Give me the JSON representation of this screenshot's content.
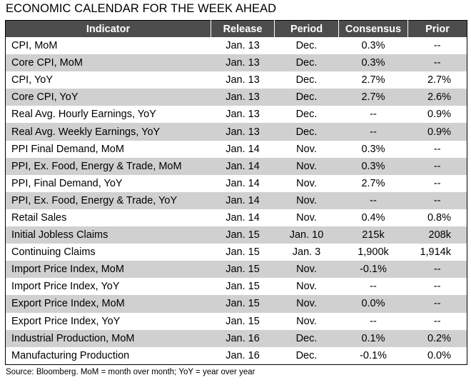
{
  "title": "ECONOMIC CALENDAR FOR THE WEEK AHEAD",
  "columns": [
    "Indicator",
    "Release",
    "Period",
    "Consensus",
    "Prior"
  ],
  "rows": [
    {
      "indicator": "CPI, MoM",
      "release": "Jan. 13",
      "period": "Dec.",
      "consensus": "0.3%",
      "prior": "--"
    },
    {
      "indicator": "Core CPI, MoM",
      "release": "Jan. 13",
      "period": "Dec.",
      "consensus": "0.3%",
      "prior": "--"
    },
    {
      "indicator": "CPI, YoY",
      "release": "Jan. 13",
      "period": "Dec.",
      "consensus": "2.7%",
      "prior": "2.7%"
    },
    {
      "indicator": "Core CPI, YoY",
      "release": "Jan. 13",
      "period": "Dec.",
      "consensus": "2.7%",
      "prior": "2.6%"
    },
    {
      "indicator": "Real Avg. Hourly Earnings, YoY",
      "release": "Jan. 13",
      "period": "Dec.",
      "consensus": "--",
      "prior": "0.9%"
    },
    {
      "indicator": "Real Avg. Weekly Earnings, YoY",
      "release": "Jan. 13",
      "period": "Dec.",
      "consensus": "--",
      "prior": "0.9%"
    },
    {
      "indicator": "PPI Final Demand, MoM",
      "release": "Jan. 14",
      "period": "Nov.",
      "consensus": "0.3%",
      "prior": "--"
    },
    {
      "indicator": "PPI, Ex. Food, Energy & Trade, MoM",
      "release": "Jan. 14",
      "period": "Nov.",
      "consensus": "0.3%",
      "prior": "--"
    },
    {
      "indicator": "PPI, Final Demand, YoY",
      "release": "Jan. 14",
      "period": "Nov.",
      "consensus": "2.7%",
      "prior": "--"
    },
    {
      "indicator": "PPI, Ex. Food, Energy & Trade, YoY",
      "release": "Jan. 14",
      "period": "Nov.",
      "consensus": "--",
      "prior": "--"
    },
    {
      "indicator": "Retail Sales",
      "release": "Jan. 14",
      "period": "Nov.",
      "consensus": "0.4%",
      "prior": "0.8%"
    },
    {
      "indicator": "Initial Jobless Claims",
      "release": "Jan. 15",
      "period": "Jan. 10",
      "consensus": "215k",
      "prior": "208k"
    },
    {
      "indicator": "Continuing Claims",
      "release": "Jan. 15",
      "period": "Jan. 3",
      "consensus": "1,900k",
      "prior": "1,914k"
    },
    {
      "indicator": "Import Price Index, MoM",
      "release": "Jan. 15",
      "period": "Nov.",
      "consensus": "-0.1%",
      "prior": "--"
    },
    {
      "indicator": "Import Price Index, YoY",
      "release": "Jan. 15",
      "period": "Nov.",
      "consensus": "--",
      "prior": "--"
    },
    {
      "indicator": "Export Price Index, MoM",
      "release": "Jan. 15",
      "period": "Nov.",
      "consensus": "0.0%",
      "prior": "--"
    },
    {
      "indicator": "Export Price Index, YoY",
      "release": "Jan. 15",
      "period": "Nov.",
      "consensus": "--",
      "prior": "--"
    },
    {
      "indicator": "Industrial Production, MoM",
      "release": "Jan. 16",
      "period": "Dec.",
      "consensus": "0.1%",
      "prior": "0.2%"
    },
    {
      "indicator": "Manufacturing Production",
      "release": "Jan. 16",
      "period": "Dec.",
      "consensus": "-0.1%",
      "prior": "0.0%"
    }
  ],
  "source_note": "Source: Bloomberg. MoM = month over month; YoY = year over year",
  "colors": {
    "header_bg": "#4d4d4d",
    "header_text": "#ffffff",
    "stripe": "#d0d0d0",
    "row": "#ffffff"
  }
}
